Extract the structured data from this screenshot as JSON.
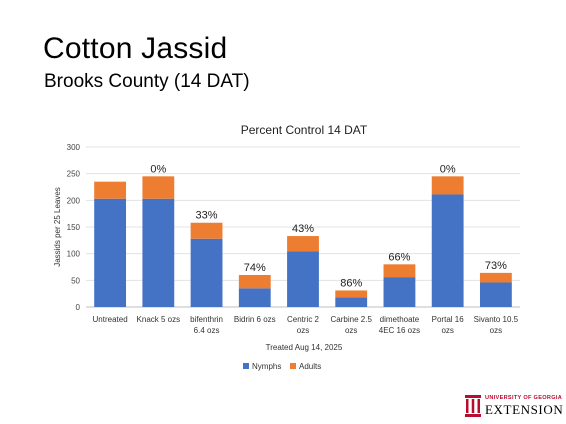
{
  "slide": {
    "title": "Cotton Jassid",
    "subtitle": "Brooks County (14 DAT)"
  },
  "logo": {
    "line1": "UNIVERSITY OF GEORGIA",
    "line2": "EXTENSION",
    "icon": "uga-arch-icon",
    "color": "#ba0c2f"
  },
  "chart_data": {
    "type": "bar",
    "stacked": true,
    "title": "Percent Control 14 DAT",
    "xlabel": "Treated Aug 14, 2025",
    "ylabel": "Jassids per 25 Leaves",
    "ylim": [
      0,
      300
    ],
    "yticks": [
      0,
      50,
      100,
      150,
      200,
      250,
      300
    ],
    "grid": true,
    "legend": "bottom",
    "categories": [
      [
        "Untreated"
      ],
      [
        "Knack 5 ozs"
      ],
      [
        "bifenthrin",
        "6.4 ozs"
      ],
      [
        "Bidrin 6 ozs"
      ],
      [
        "Centric 2",
        "ozs"
      ],
      [
        "Carbine 2.5",
        "ozs"
      ],
      [
        "dimethoate",
        "4EC 16 ozs"
      ],
      [
        "Portal 16",
        "ozs"
      ],
      [
        "Sivanto 10.5",
        "ozs"
      ]
    ],
    "series": [
      {
        "name": "Nymphs",
        "color": "#4472c4",
        "values": [
          203,
          203,
          128,
          35,
          104,
          18,
          56,
          211,
          46
        ]
      },
      {
        "name": "Adults",
        "color": "#ed7d31",
        "values": [
          32,
          42,
          30,
          25,
          29,
          13,
          24,
          34,
          18
        ]
      }
    ],
    "data_labels": [
      "",
      "0%",
      "33%",
      "74%",
      "43%",
      "86%",
      "66%",
      "0%",
      "73%"
    ]
  }
}
